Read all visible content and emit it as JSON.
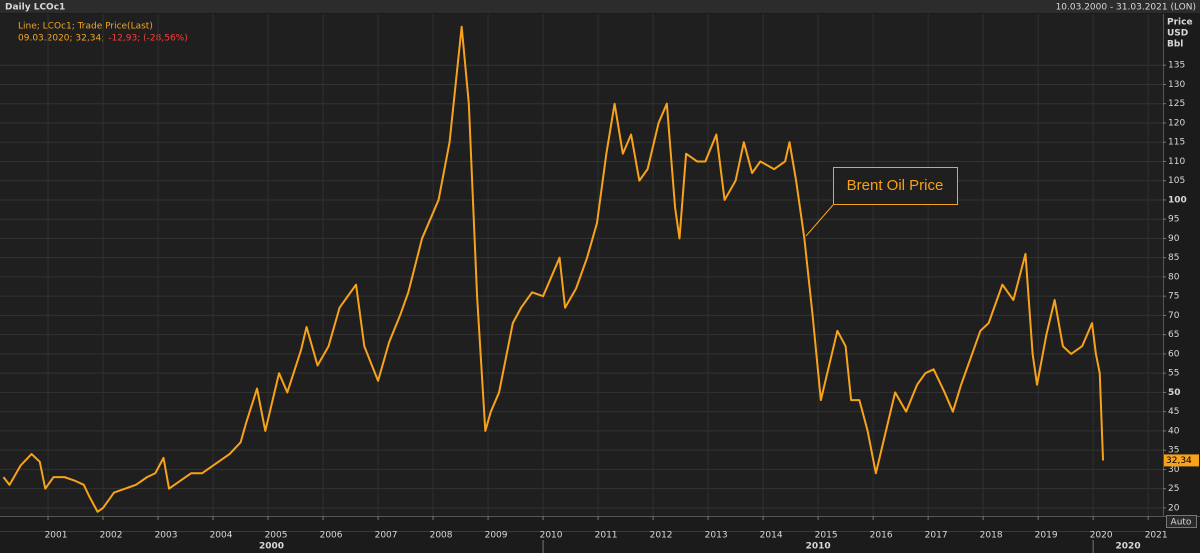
{
  "header": {
    "title": "Daily LCOc1",
    "range": "10.03.2000 - 31.03.2021 (LON)"
  },
  "auto_button": "Auto",
  "chart_data": {
    "type": "line",
    "legend_line1": "Line; LCOc1; Trade Price(Last)",
    "legend_line2_main": "09.03.2020; 32,34;",
    "legend_line2_change": "-12,93; (-28,56%)",
    "y_axis_units": [
      "Price",
      "USD",
      "Bbl"
    ],
    "annotation": "Brent Oil Price",
    "last_label": {
      "value": 32.34,
      "label": "32,34"
    },
    "xlim": [
      2000.127,
      2021.27
    ],
    "ylim": [
      17.9,
      148.3
    ],
    "xticks": [
      2001,
      2002,
      2003,
      2004,
      2005,
      2006,
      2007,
      2008,
      2009,
      2010,
      2011,
      2012,
      2013,
      2014,
      2015,
      2016,
      2017,
      2018,
      2019,
      2020,
      2021
    ],
    "decades": [
      2000,
      2010,
      2020
    ],
    "yticks": [
      20,
      25,
      30,
      35,
      40,
      45,
      50,
      55,
      60,
      65,
      70,
      75,
      80,
      85,
      90,
      95,
      100,
      105,
      110,
      115,
      120,
      125,
      130,
      135
    ],
    "grid": true,
    "series": [
      {
        "name": "LCOc1",
        "color": "#f7a21b",
        "x": [
          2000.19,
          2000.3,
          2000.5,
          2000.7,
          2000.85,
          2000.95,
          2001.1,
          2001.3,
          2001.5,
          2001.65,
          2001.75,
          2001.9,
          2002.0,
          2002.2,
          2002.4,
          2002.6,
          2002.8,
          2002.95,
          2003.1,
          2003.2,
          2003.4,
          2003.6,
          2003.8,
          2004.0,
          2004.3,
          2004.5,
          2004.6,
          2004.8,
          2004.95,
          2005.2,
          2005.35,
          2005.6,
          2005.7,
          2005.9,
          2006.1,
          2006.3,
          2006.6,
          2006.75,
          2007.0,
          2007.2,
          2007.4,
          2007.55,
          2007.8,
          2007.95,
          2008.1,
          2008.3,
          2008.52,
          2008.65,
          2008.8,
          2008.95,
          2009.05,
          2009.2,
          2009.45,
          2009.6,
          2009.8,
          2010.0,
          2010.3,
          2010.4,
          2010.6,
          2010.8,
          2010.98,
          2011.15,
          2011.3,
          2011.45,
          2011.6,
          2011.75,
          2011.9,
          2012.1,
          2012.25,
          2012.4,
          2012.48,
          2012.6,
          2012.8,
          2012.95,
          2013.15,
          2013.3,
          2013.5,
          2013.65,
          2013.8,
          2013.95,
          2014.2,
          2014.4,
          2014.48,
          2014.6,
          2014.75,
          2014.9,
          2015.05,
          2015.25,
          2015.35,
          2015.5,
          2015.6,
          2015.75,
          2015.9,
          2016.05,
          2016.2,
          2016.4,
          2016.6,
          2016.8,
          2016.95,
          2017.1,
          2017.3,
          2017.45,
          2017.6,
          2017.8,
          2017.95,
          2018.1,
          2018.35,
          2018.55,
          2018.77,
          2018.9,
          2018.98,
          2019.15,
          2019.3,
          2019.45,
          2019.6,
          2019.8,
          2019.98,
          2020.05,
          2020.12,
          2020.18
        ],
        "values": [
          28,
          26,
          31,
          34,
          32,
          25,
          28,
          28,
          27,
          26,
          23,
          19,
          20,
          24,
          25,
          26,
          28,
          29,
          33,
          25,
          27,
          29,
          29,
          31,
          34,
          37,
          42,
          51,
          40,
          55,
          50,
          61,
          67,
          57,
          62,
          72,
          78,
          62,
          53,
          63,
          70,
          76,
          90,
          95,
          100,
          115,
          145,
          125,
          75,
          40,
          45,
          50,
          68,
          72,
          76,
          75,
          85,
          72,
          77,
          85,
          94,
          112,
          125,
          112,
          117,
          105,
          108,
          120,
          125,
          98,
          90,
          112,
          110,
          110,
          117,
          100,
          105,
          115,
          107,
          110,
          108,
          110,
          115,
          105,
          90,
          70,
          48,
          60,
          66,
          62,
          48,
          48,
          40,
          29,
          38,
          50,
          45,
          52,
          55,
          56,
          50,
          45,
          52,
          60,
          66,
          68,
          78,
          74,
          86,
          60,
          52,
          65,
          74,
          62,
          60,
          62,
          68,
          60,
          55,
          32.34
        ]
      }
    ]
  }
}
